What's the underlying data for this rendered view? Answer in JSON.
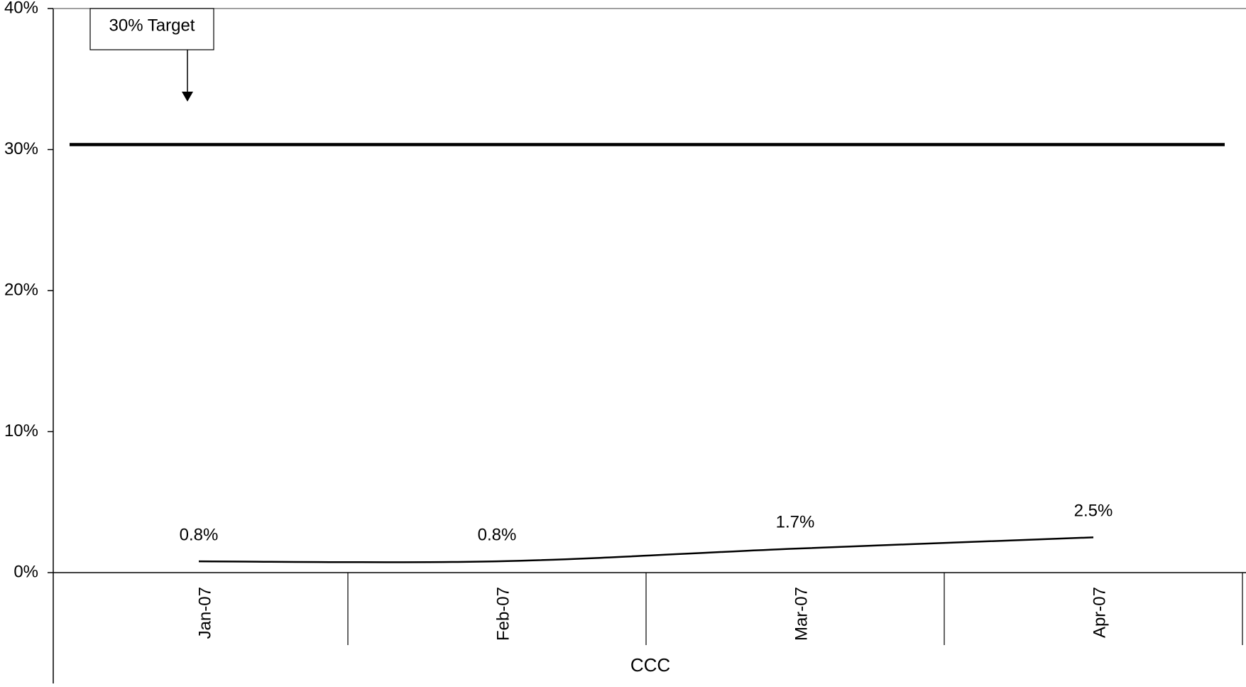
{
  "chart_data": {
    "type": "line",
    "title": "",
    "xlabel": "CCC",
    "ylabel": "",
    "categories": [
      "Jan-07",
      "Feb-07",
      "Mar-07",
      "Apr-07"
    ],
    "series": [
      {
        "values": [
          0.8,
          0.8,
          1.7,
          2.5
        ],
        "data_labels": [
          "0.8%",
          "0.8%",
          "1.7%",
          "2.5%"
        ]
      }
    ],
    "y_ticks": [
      0,
      10,
      20,
      30,
      40
    ],
    "y_tick_labels": [
      "0%",
      "10%",
      "20%",
      "30%",
      "40%"
    ],
    "ylim": [
      0,
      40
    ],
    "target": {
      "value": 30,
      "label": "30% Target"
    },
    "grid": false,
    "legend": "none"
  }
}
